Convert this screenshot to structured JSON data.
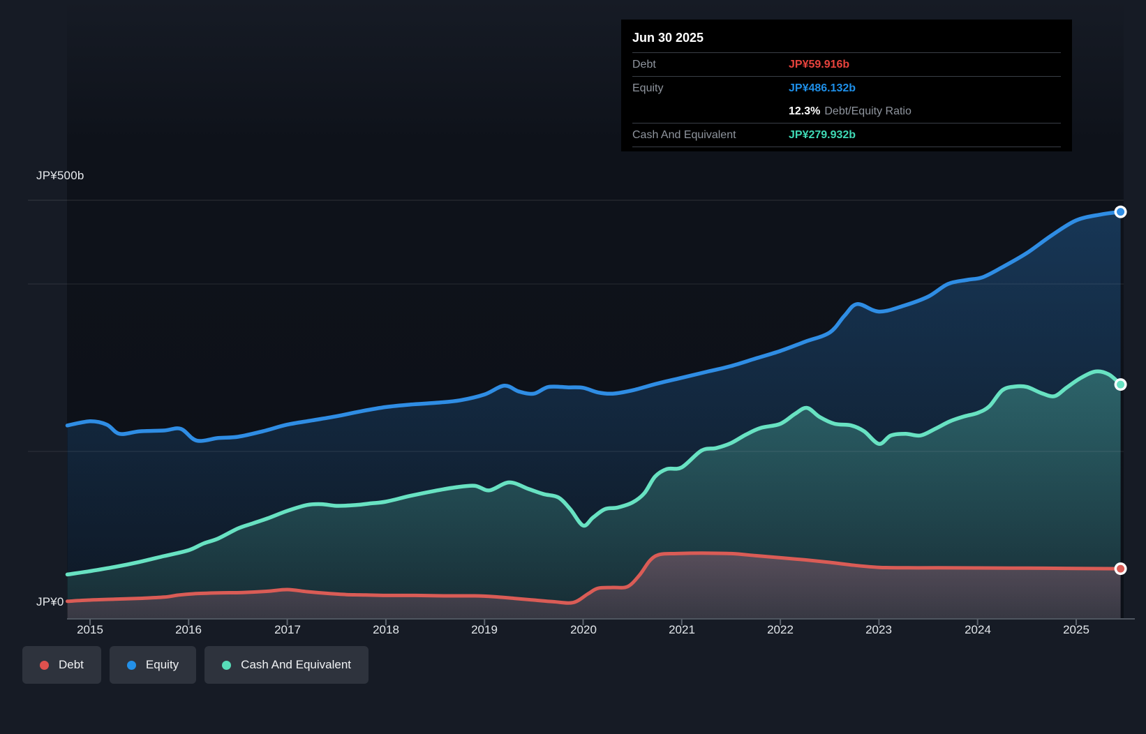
{
  "tooltip": {
    "date": "Jun 30 2025",
    "debt_label": "Debt",
    "debt_value": "JP¥59.916b",
    "equity_label": "Equity",
    "equity_value": "JP¥486.132b",
    "ratio_value": "12.3%",
    "ratio_label": "Debt/Equity Ratio",
    "cash_label": "Cash And Equivalent",
    "cash_value": "JP¥279.932b"
  },
  "axis": {
    "y_top_label": "JP¥500b",
    "y_zero_label": "JP¥0",
    "years": [
      "2015",
      "2016",
      "2017",
      "2018",
      "2019",
      "2020",
      "2021",
      "2022",
      "2023",
      "2024",
      "2025"
    ]
  },
  "legend": {
    "items": [
      {
        "label": "Debt",
        "color": "#e0514e"
      },
      {
        "label": "Equity",
        "color": "#2390e8"
      },
      {
        "label": "Cash And Equivalent",
        "color": "#57dcb8"
      }
    ]
  },
  "colors": {
    "debt_line": "#da5c56",
    "equity_line": "#2f8de4",
    "cash_line": "#68e2c2",
    "debt_value_text": "#e8433d",
    "equity_value_text": "#1e8fe8",
    "cash_value_text": "#3fd9b5",
    "background": "#161b25",
    "tooltip_bg": "#000000",
    "gridline": "rgba(255,255,255,0.11)"
  },
  "chart_data": {
    "type": "area",
    "title": "",
    "xlabel": "",
    "ylabel": "JP¥ (billions)",
    "ylim": [
      0,
      500
    ],
    "x_range_years": [
      2014.77,
      2025.45
    ],
    "x_tick_years": [
      2015,
      2016,
      2017,
      2018,
      2019,
      2020,
      2021,
      2022,
      2023,
      2024,
      2025
    ],
    "y_gridlines_b": [
      500,
      400,
      200
    ],
    "legend_position": "bottom-left",
    "as_of": "Jun 30 2025",
    "debt_equity_ratio_pct": 12.3,
    "end_values_b": {
      "debt": 59.916,
      "equity": 486.132,
      "cash_and_equivalent": 279.932
    },
    "series": [
      {
        "name": "Equity",
        "unit": "JP¥b",
        "points": [
          [
            2014.77,
            231
          ],
          [
            2015.0,
            236
          ],
          [
            2015.17,
            232
          ],
          [
            2015.3,
            221
          ],
          [
            2015.5,
            224
          ],
          [
            2015.75,
            225
          ],
          [
            2015.92,
            227
          ],
          [
            2016.08,
            213
          ],
          [
            2016.3,
            216
          ],
          [
            2016.5,
            217.5
          ],
          [
            2016.75,
            224
          ],
          [
            2017.0,
            232
          ],
          [
            2017.25,
            237
          ],
          [
            2017.5,
            242
          ],
          [
            2017.75,
            248
          ],
          [
            2018.0,
            253
          ],
          [
            2018.25,
            256
          ],
          [
            2018.5,
            258
          ],
          [
            2018.75,
            261
          ],
          [
            2019.0,
            268
          ],
          [
            2019.2,
            278.5
          ],
          [
            2019.35,
            271.5
          ],
          [
            2019.5,
            269
          ],
          [
            2019.65,
            277
          ],
          [
            2019.85,
            276.5
          ],
          [
            2020.0,
            276
          ],
          [
            2020.15,
            270.5
          ],
          [
            2020.3,
            269
          ],
          [
            2020.5,
            273
          ],
          [
            2020.75,
            281
          ],
          [
            2021.0,
            288
          ],
          [
            2021.25,
            295
          ],
          [
            2021.5,
            302
          ],
          [
            2021.75,
            311
          ],
          [
            2022.0,
            320
          ],
          [
            2022.25,
            331
          ],
          [
            2022.5,
            342
          ],
          [
            2022.65,
            362
          ],
          [
            2022.78,
            376
          ],
          [
            2023.0,
            367
          ],
          [
            2023.25,
            374
          ],
          [
            2023.5,
            385
          ],
          [
            2023.7,
            400
          ],
          [
            2023.9,
            405
          ],
          [
            2024.05,
            408
          ],
          [
            2024.25,
            420
          ],
          [
            2024.5,
            437
          ],
          [
            2024.75,
            458
          ],
          [
            2025.0,
            476
          ],
          [
            2025.25,
            483
          ],
          [
            2025.45,
            486.132
          ]
        ]
      },
      {
        "name": "Cash And Equivalent",
        "unit": "JP¥b",
        "points": [
          [
            2014.77,
            53
          ],
          [
            2015.0,
            57
          ],
          [
            2015.25,
            62
          ],
          [
            2015.5,
            68
          ],
          [
            2015.75,
            75
          ],
          [
            2016.0,
            82
          ],
          [
            2016.15,
            90
          ],
          [
            2016.3,
            96
          ],
          [
            2016.5,
            108
          ],
          [
            2016.65,
            114
          ],
          [
            2016.8,
            120
          ],
          [
            2017.0,
            129
          ],
          [
            2017.2,
            136
          ],
          [
            2017.35,
            137
          ],
          [
            2017.5,
            135
          ],
          [
            2017.7,
            136
          ],
          [
            2017.85,
            138
          ],
          [
            2018.0,
            140
          ],
          [
            2018.25,
            147
          ],
          [
            2018.5,
            153
          ],
          [
            2018.7,
            157
          ],
          [
            2018.9,
            159
          ],
          [
            2019.05,
            153.5
          ],
          [
            2019.25,
            163
          ],
          [
            2019.45,
            155
          ],
          [
            2019.6,
            149
          ],
          [
            2019.75,
            145
          ],
          [
            2019.87,
            131
          ],
          [
            2020.0,
            111.5
          ],
          [
            2020.1,
            121
          ],
          [
            2020.22,
            131
          ],
          [
            2020.35,
            133
          ],
          [
            2020.5,
            139
          ],
          [
            2020.62,
            150
          ],
          [
            2020.73,
            170
          ],
          [
            2020.85,
            179
          ],
          [
            2021.0,
            181
          ],
          [
            2021.2,
            201
          ],
          [
            2021.35,
            204
          ],
          [
            2021.5,
            210
          ],
          [
            2021.65,
            220
          ],
          [
            2021.8,
            228
          ],
          [
            2022.0,
            233
          ],
          [
            2022.15,
            245
          ],
          [
            2022.27,
            252
          ],
          [
            2022.4,
            241
          ],
          [
            2022.55,
            233
          ],
          [
            2022.72,
            231
          ],
          [
            2022.85,
            224
          ],
          [
            2023.0,
            209
          ],
          [
            2023.12,
            219
          ],
          [
            2023.27,
            221
          ],
          [
            2023.42,
            219
          ],
          [
            2023.57,
            227
          ],
          [
            2023.72,
            236
          ],
          [
            2023.87,
            242
          ],
          [
            2024.0,
            246
          ],
          [
            2024.12,
            254
          ],
          [
            2024.25,
            273
          ],
          [
            2024.38,
            277.5
          ],
          [
            2024.5,
            277
          ],
          [
            2024.65,
            269.5
          ],
          [
            2024.78,
            266
          ],
          [
            2024.9,
            276
          ],
          [
            2025.05,
            288
          ],
          [
            2025.2,
            295.5
          ],
          [
            2025.33,
            292
          ],
          [
            2025.45,
            279.932
          ]
        ]
      },
      {
        "name": "Debt",
        "unit": "JP¥b",
        "points": [
          [
            2014.77,
            21
          ],
          [
            2015.0,
            22.5
          ],
          [
            2015.25,
            23.5
          ],
          [
            2015.5,
            24.5
          ],
          [
            2015.75,
            26
          ],
          [
            2015.9,
            28.5
          ],
          [
            2016.05,
            30
          ],
          [
            2016.3,
            31
          ],
          [
            2016.55,
            31.5
          ],
          [
            2016.8,
            33
          ],
          [
            2017.0,
            35
          ],
          [
            2017.2,
            32.5
          ],
          [
            2017.4,
            30.5
          ],
          [
            2017.6,
            29
          ],
          [
            2017.8,
            28.5
          ],
          [
            2018.0,
            28
          ],
          [
            2018.3,
            28
          ],
          [
            2018.6,
            27.5
          ],
          [
            2018.9,
            27.5
          ],
          [
            2019.1,
            26.5
          ],
          [
            2019.3,
            24.5
          ],
          [
            2019.5,
            22.5
          ],
          [
            2019.7,
            20.5
          ],
          [
            2019.9,
            19.5
          ],
          [
            2020.05,
            30
          ],
          [
            2020.15,
            36.5
          ],
          [
            2020.3,
            37.5
          ],
          [
            2020.45,
            38.5
          ],
          [
            2020.57,
            52
          ],
          [
            2020.68,
            70
          ],
          [
            2020.78,
            77
          ],
          [
            2020.95,
            78
          ],
          [
            2021.2,
            78.5
          ],
          [
            2021.5,
            78
          ],
          [
            2021.75,
            75.5
          ],
          [
            2022.0,
            73
          ],
          [
            2022.25,
            70.5
          ],
          [
            2022.5,
            67.5
          ],
          [
            2022.75,
            64
          ],
          [
            2023.0,
            61.5
          ],
          [
            2023.3,
            61
          ],
          [
            2023.6,
            61
          ],
          [
            2024.0,
            60.8
          ],
          [
            2024.5,
            60.6
          ],
          [
            2025.0,
            60.2
          ],
          [
            2025.45,
            59.916
          ]
        ]
      }
    ]
  }
}
